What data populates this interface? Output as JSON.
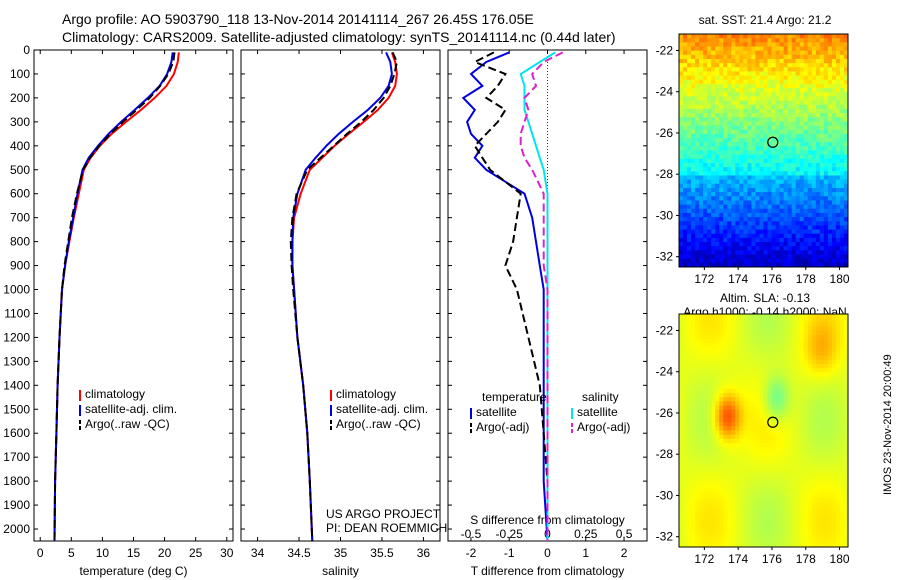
{
  "header": {
    "line1": "Argo profile: AO 5903790_118 13-Nov-2014 20141114_267 26.45S 176.05E",
    "line2": "Climatology: CARS2009. Satellite-adjusted climatology: synTS_20141114.nc (0.44d later)"
  },
  "colors": {
    "red": "#ff0000",
    "blue": "#0000dd",
    "black": "#000000",
    "cyan": "#00e5ee",
    "magenta": "#dd22cc"
  },
  "chart_data": [
    {
      "type": "line",
      "id": "temperature",
      "xlabel": "temperature (deg C)",
      "ylabel": "",
      "xlim": [
        -1,
        31
      ],
      "ylim": [
        2050,
        0
      ],
      "xticks": [
        0,
        5,
        10,
        15,
        20,
        25,
        30
      ],
      "yticks": [
        0,
        100,
        200,
        300,
        400,
        500,
        600,
        700,
        800,
        900,
        1000,
        1100,
        1200,
        1300,
        1400,
        1500,
        1600,
        1700,
        1800,
        1900,
        2000
      ],
      "legend": [
        "climatology",
        "satellite-adj. clim.",
        "Argo(..raw -QC)"
      ],
      "series": [
        {
          "name": "climatology",
          "color": "#ff0000",
          "dash": "",
          "x": [
            22.3,
            22.1,
            21.5,
            20.3,
            18.4,
            16.2,
            13.8,
            11.5,
            9.6,
            8.1,
            7.0,
            6.2,
            5.4,
            4.7,
            4.0,
            3.5,
            3.1,
            2.8,
            2.6,
            2.4,
            2.3
          ],
          "y": [
            10,
            50,
            100,
            150,
            200,
            250,
            300,
            350,
            400,
            450,
            500,
            600,
            700,
            800,
            900,
            1000,
            1200,
            1400,
            1600,
            1800,
            2050
          ]
        },
        {
          "name": "satellite-adj. clim.",
          "color": "#0000dd",
          "dash": "",
          "x": [
            21.3,
            21.1,
            20.4,
            19.2,
            17.3,
            15.2,
            13.0,
            11.0,
            9.3,
            7.8,
            6.8,
            6.0,
            5.3,
            4.6,
            4.0,
            3.5,
            3.1,
            2.8,
            2.6,
            2.4,
            2.3
          ],
          "y": [
            10,
            50,
            100,
            150,
            200,
            250,
            300,
            350,
            400,
            450,
            500,
            600,
            700,
            800,
            900,
            1000,
            1200,
            1400,
            1600,
            1800,
            2050
          ]
        },
        {
          "name": "Argo(..raw -QC)",
          "color": "#000000",
          "dash": "8,4",
          "x": [
            21.6,
            21.4,
            20.6,
            19.3,
            17.6,
            15.5,
            13.3,
            11.3,
            9.5,
            8.0,
            6.9,
            5.9,
            5.1,
            4.5,
            3.9,
            3.5,
            3.1,
            2.8,
            2.6,
            2.4,
            2.3
          ],
          "y": [
            10,
            50,
            100,
            150,
            200,
            250,
            300,
            350,
            400,
            450,
            500,
            600,
            700,
            800,
            900,
            1000,
            1200,
            1400,
            1600,
            1800,
            2050
          ]
        }
      ]
    },
    {
      "type": "line",
      "id": "salinity",
      "xlabel": "salinity",
      "ylabel": "",
      "xlim": [
        33.8,
        36.2
      ],
      "ylim": [
        2050,
        0
      ],
      "xticks": [
        34,
        34.5,
        35,
        35.5,
        36
      ],
      "legend": [
        "climatology",
        "satellite-adj. clim.",
        "Argo(..raw -QC)"
      ],
      "series": [
        {
          "name": "climatology",
          "color": "#ff0000",
          "dash": "",
          "x": [
            35.62,
            35.66,
            35.68,
            35.66,
            35.58,
            35.45,
            35.28,
            35.1,
            34.93,
            34.78,
            34.63,
            34.52,
            34.44,
            34.42,
            34.42,
            34.44,
            34.48,
            34.55,
            34.6,
            34.63,
            34.66
          ],
          "y": [
            10,
            50,
            100,
            150,
            200,
            250,
            300,
            350,
            400,
            450,
            500,
            600,
            700,
            800,
            900,
            1000,
            1200,
            1400,
            1600,
            1800,
            2050
          ]
        },
        {
          "name": "satellite-adj. clim.",
          "color": "#0000dd",
          "dash": "",
          "x": [
            35.55,
            35.6,
            35.62,
            35.58,
            35.48,
            35.33,
            35.15,
            34.98,
            34.83,
            34.7,
            34.58,
            34.48,
            34.43,
            34.42,
            34.42,
            34.44,
            34.48,
            34.55,
            34.6,
            34.63,
            34.66
          ],
          "y": [
            10,
            50,
            100,
            150,
            200,
            250,
            300,
            350,
            400,
            450,
            500,
            600,
            700,
            800,
            900,
            1000,
            1200,
            1400,
            1600,
            1800,
            2050
          ]
        },
        {
          "name": "Argo(..raw -QC)",
          "color": "#000000",
          "dash": "8,4",
          "x": [
            35.63,
            35.68,
            35.65,
            35.6,
            35.52,
            35.4,
            35.25,
            35.08,
            34.92,
            34.76,
            34.6,
            34.47,
            34.42,
            34.4,
            34.41,
            34.43,
            34.48,
            34.55,
            34.6,
            34.63,
            34.66
          ],
          "y": [
            10,
            50,
            100,
            150,
            200,
            250,
            300,
            350,
            400,
            450,
            500,
            600,
            700,
            800,
            900,
            1000,
            1200,
            1400,
            1600,
            1800,
            2050
          ]
        }
      ]
    },
    {
      "type": "line",
      "id": "difference",
      "xlabel": "T difference from climatology",
      "ylabel": "",
      "top_label": "S difference from climatology",
      "xlim": [
        -2.6,
        2.6
      ],
      "ylim": [
        2050,
        0
      ],
      "xticks": [
        -2,
        -1,
        0,
        1,
        2
      ],
      "top_tick_labels": [
        "-0.5",
        "-0.25",
        "0",
        "0.25",
        "0.5"
      ],
      "legend_headers": [
        "temperature",
        "salinity"
      ],
      "legend": [
        "satellite",
        "Argo(-adj)",
        "satellite",
        "Argo(-adj)"
      ],
      "series": [
        {
          "name": "satellite",
          "color": "#0000dd",
          "dash": "",
          "x": [
            -1.0,
            -1.6,
            -2.0,
            -1.7,
            -2.2,
            -1.9,
            -2.1,
            -2.0,
            -1.7,
            -1.9,
            -1.6,
            -0.6,
            -0.4,
            -0.3,
            -0.2,
            -0.1,
            -0.1,
            -0.1,
            -0.1,
            -0.1,
            0.0
          ],
          "y": [
            10,
            50,
            100,
            150,
            200,
            250,
            300,
            350,
            400,
            450,
            500,
            600,
            700,
            800,
            900,
            1000,
            1200,
            1400,
            1600,
            1800,
            2050
          ]
        },
        {
          "name": "Argo(-adj)",
          "color": "#000000",
          "dash": "8,4",
          "x": [
            -1.4,
            -1.9,
            -1.1,
            -1.3,
            -1.6,
            -1.1,
            -1.3,
            -1.6,
            -1.9,
            -1.7,
            -1.5,
            -0.7,
            -0.8,
            -0.9,
            -1.1,
            -0.8,
            -0.5,
            -0.2,
            -0.1,
            0.0,
            0.0
          ],
          "y": [
            10,
            50,
            100,
            150,
            200,
            250,
            300,
            350,
            400,
            450,
            500,
            600,
            700,
            800,
            900,
            1000,
            1200,
            1400,
            1600,
            1800,
            2050
          ]
        },
        {
          "name": "satellite",
          "color": "#00e5ee",
          "dash": "",
          "x": [
            0.2,
            -0.2,
            -0.7,
            -0.6,
            -0.6,
            -0.6,
            -0.5,
            -0.4,
            -0.3,
            -0.2,
            -0.1,
            0.0,
            0.0,
            0.0,
            0.0,
            0.0,
            0.0,
            0.0,
            0.0,
            0.0,
            0.0
          ],
          "y": [
            10,
            50,
            100,
            150,
            200,
            250,
            300,
            350,
            400,
            450,
            500,
            600,
            700,
            800,
            900,
            1000,
            1200,
            1400,
            1600,
            1800,
            2050
          ]
        },
        {
          "name": "Argo(-adj)",
          "color": "#dd22cc",
          "dash": "8,4",
          "x": [
            0.4,
            -0.1,
            -0.4,
            -0.3,
            -0.6,
            -0.5,
            -0.6,
            -0.7,
            -0.7,
            -0.6,
            -0.4,
            -0.1,
            -0.1,
            -0.1,
            -0.1,
            0.0,
            0.0,
            0.0,
            0.0,
            0.0,
            0.0
          ],
          "y": [
            10,
            50,
            100,
            150,
            200,
            250,
            300,
            350,
            400,
            450,
            500,
            600,
            700,
            800,
            900,
            1000,
            1200,
            1400,
            1600,
            1800,
            2050
          ]
        }
      ]
    },
    {
      "type": "heatmap",
      "id": "sst-map",
      "title": "sat. SST: 21.4 Argo: 21.2",
      "xlim": [
        170.5,
        180.5
      ],
      "ylim": [
        -32.5,
        -21.2
      ],
      "xticks": [
        172,
        174,
        176,
        178,
        180
      ],
      "yticks": [
        -22,
        -24,
        -26,
        -28,
        -30,
        -32
      ],
      "marker": {
        "lon": 176.05,
        "lat": -26.45
      }
    },
    {
      "type": "heatmap",
      "id": "sla-map",
      "title_line1": "Altim. SLA: -0.13",
      "title_line2": "Argo h1000: -0.14 h2000: NaN",
      "xlim": [
        170.5,
        180.5
      ],
      "ylim": [
        -32.5,
        -21.2
      ],
      "xticks": [
        172,
        174,
        176,
        178,
        180
      ],
      "yticks": [
        -22,
        -24,
        -26,
        -28,
        -30,
        -32
      ],
      "marker": {
        "lon": 176.05,
        "lat": -26.45
      }
    }
  ],
  "credit": {
    "line1": "US ARGO PROJECT",
    "line2": "PI: DEAN ROEMMICH"
  },
  "imos_stamp": "IMOS 23-Nov-2014 20:00:49"
}
